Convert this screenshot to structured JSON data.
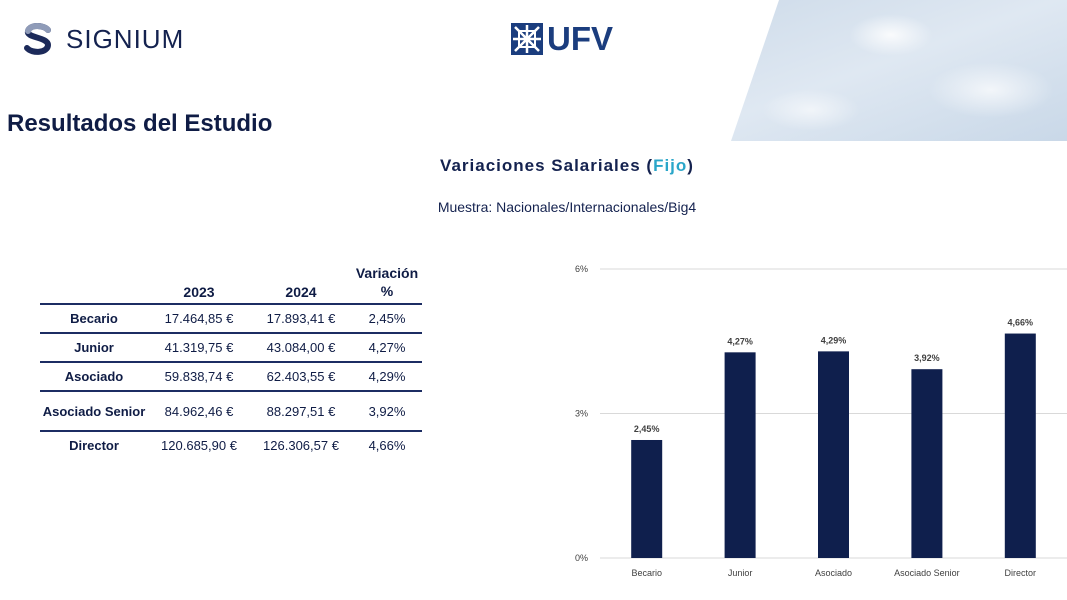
{
  "header": {
    "brand_left": "SIGNIUM",
    "brand_right": "UFV"
  },
  "page_title": "Resultados del Estudio",
  "section": {
    "title_prefix": "Variaciones Salariales (",
    "title_accent": "Fijo",
    "title_suffix": ")",
    "sample": "Muestra: Nacionales/Internacionales/Big4"
  },
  "table": {
    "columns": [
      "",
      "2023",
      "2024",
      "Variación %"
    ],
    "rows": [
      {
        "label": "Becario",
        "y2023": "17.464,85 €",
        "y2024": "17.893,41 €",
        "variation": "2,45%"
      },
      {
        "label": "Junior",
        "y2023": "41.319,75 €",
        "y2024": "43.084,00 €",
        "variation": "4,27%"
      },
      {
        "label": "Asociado",
        "y2023": "59.838,74 €",
        "y2024": "62.403,55 €",
        "variation": "4,29%"
      },
      {
        "label": "Asociado Senior",
        "y2023": "84.962,46 €",
        "y2024": "88.297,51 €",
        "variation": "3,92%"
      },
      {
        "label": "Director",
        "y2023": "120.685,90 €",
        "y2024": "126.306,57 €",
        "variation": "4,66%"
      }
    ]
  },
  "colors": {
    "bar": "#0f1f4d",
    "accent": "#2aa6c9",
    "gridline": "#d9d9d9"
  },
  "chart_data": {
    "type": "bar",
    "categories": [
      "Becario",
      "Junior",
      "Asociado",
      "Asociado Senior",
      "Director"
    ],
    "values": [
      2.45,
      4.27,
      4.29,
      3.92,
      4.66
    ],
    "data_labels": [
      "2,45%",
      "4,27%",
      "4,29%",
      "3,92%",
      "4,66%"
    ],
    "yticks": [
      0,
      3,
      6
    ],
    "ytick_labels": [
      "0%",
      "3%",
      "6%"
    ],
    "ylim": [
      0,
      6
    ],
    "grid": true,
    "title": "",
    "xlabel": "",
    "ylabel": ""
  }
}
